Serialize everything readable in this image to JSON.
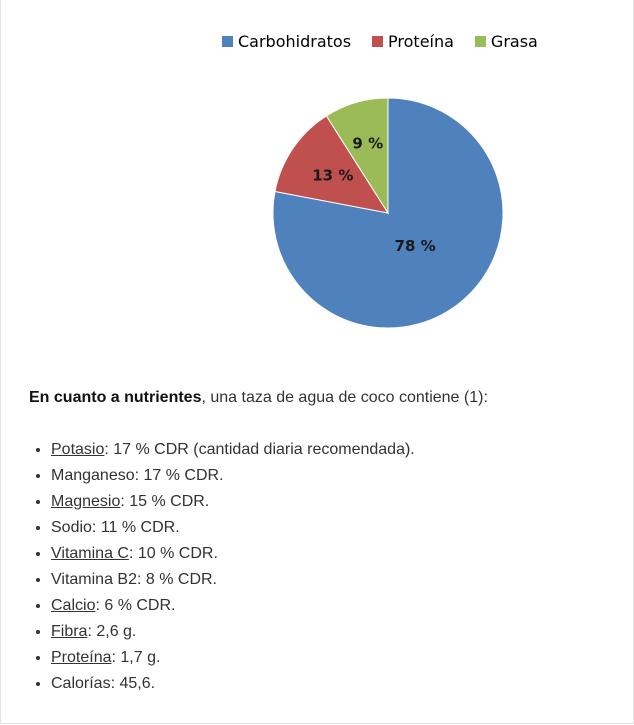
{
  "chart_data": {
    "type": "pie",
    "title": "",
    "legend_position": "top",
    "categories": [
      "Carbohidratos",
      "Proteína",
      "Grasa"
    ],
    "values": [
      78,
      13,
      9
    ],
    "labels": [
      "78 %",
      "13 %",
      "9 %"
    ],
    "colors": [
      "#4f81bd",
      "#c0504d",
      "#9bbb59"
    ]
  },
  "intro": {
    "bold": "En cuanto a nutrientes",
    "rest": ", una taza de agua de coco contiene (1):"
  },
  "nutrients": [
    {
      "name": "Potasio",
      "linked": true,
      "value": ": 17 % CDR (cantidad diaria recomendada)."
    },
    {
      "name": "Manganeso",
      "linked": false,
      "value": ": 17 % CDR."
    },
    {
      "name": "Magnesio",
      "linked": true,
      "value": ": 15 % CDR."
    },
    {
      "name": "Sodio",
      "linked": false,
      "value": ": 11 % CDR."
    },
    {
      "name": "Vitamina C",
      "linked": true,
      "value": ": 10 % CDR."
    },
    {
      "name": "Vitamina B2",
      "linked": false,
      "value": ": 8 % CDR."
    },
    {
      "name": "Calcio",
      "linked": true,
      "value": ": 6 % CDR."
    },
    {
      "name": "Fibra",
      "linked": true,
      "value": ": 2,6 g."
    },
    {
      "name": "Proteína",
      "linked": true,
      "value": ": 1,7 g."
    },
    {
      "name": "Calorías",
      "linked": false,
      "value": ": 45,6."
    }
  ]
}
